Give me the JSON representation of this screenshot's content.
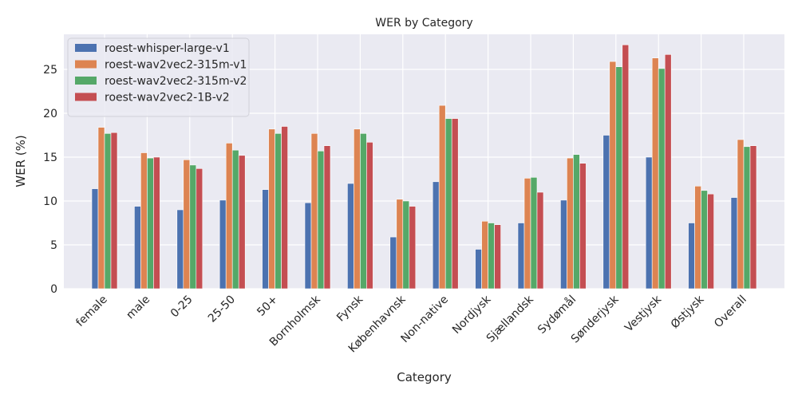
{
  "chart_data": {
    "type": "bar",
    "title": "WER by Category",
    "xlabel": "Category",
    "ylabel": "WER (%)",
    "ylim": [
      0,
      29
    ],
    "yticks": [
      0,
      5,
      10,
      15,
      20,
      25
    ],
    "grid": true,
    "legend_position": "top-left",
    "categories": [
      "female",
      "male",
      "0-25",
      "25-50",
      "50+",
      "Bornholmsk",
      "Fynsk",
      "Københavnsk",
      "Non-native",
      "Nordjysk",
      "Sjællandsk",
      "Sydømål",
      "Sønderjysk",
      "Vestjysk",
      "Østjysk",
      "Overall"
    ],
    "series": [
      {
        "name": "roest-whisper-large-v1",
        "color": "#4c72b0",
        "values": [
          11.4,
          9.4,
          9.0,
          10.1,
          11.3,
          9.8,
          12.0,
          5.9,
          12.2,
          4.5,
          7.5,
          10.1,
          17.5,
          15.0,
          7.5,
          10.4
        ]
      },
      {
        "name": "roest-wav2vec2-315m-v1",
        "color": "#dd8452",
        "values": [
          18.4,
          15.5,
          14.7,
          16.6,
          18.2,
          17.7,
          18.2,
          10.2,
          20.9,
          7.7,
          12.6,
          14.9,
          25.9,
          26.3,
          11.7,
          17.0
        ]
      },
      {
        "name": "roest-wav2vec2-315m-v2",
        "color": "#55a868",
        "values": [
          17.7,
          14.9,
          14.1,
          15.8,
          17.7,
          15.7,
          17.7,
          10.0,
          19.4,
          7.5,
          12.7,
          15.3,
          25.3,
          25.1,
          11.2,
          16.2
        ]
      },
      {
        "name": "roest-wav2vec2-1B-v2",
        "color": "#c44e52",
        "values": [
          17.8,
          15.0,
          13.7,
          15.2,
          18.5,
          16.3,
          16.7,
          9.4,
          19.4,
          7.3,
          11.0,
          14.3,
          27.8,
          26.7,
          10.8,
          16.3
        ]
      }
    ]
  }
}
